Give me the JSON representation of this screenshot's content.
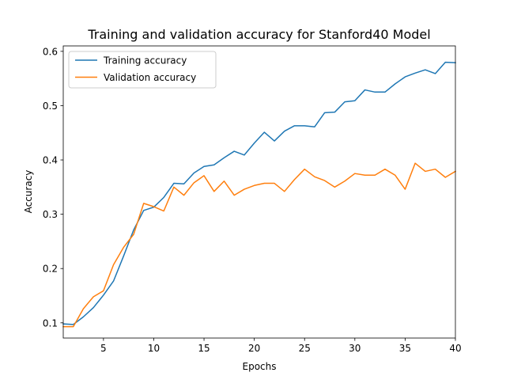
{
  "chart_data": {
    "type": "line",
    "title": "Training and validation accuracy for Stanford40 Model",
    "xlabel": "Epochs",
    "ylabel": "Accuracy",
    "xlim": [
      1,
      40
    ],
    "ylim": [
      0.072,
      0.61
    ],
    "xticks": [
      5,
      10,
      15,
      20,
      25,
      30,
      35,
      40
    ],
    "yticks": [
      0.1,
      0.2,
      0.3,
      0.4,
      0.5,
      0.6
    ],
    "xtick_labels": [
      "5",
      "10",
      "15",
      "20",
      "25",
      "30",
      "35",
      "40"
    ],
    "ytick_labels": [
      "0.1",
      "0.2",
      "0.3",
      "0.4",
      "0.5",
      "0.6"
    ],
    "grid": false,
    "legend_position": "top-left",
    "x": [
      1,
      2,
      3,
      4,
      5,
      6,
      7,
      8,
      9,
      10,
      11,
      12,
      13,
      14,
      15,
      16,
      17,
      18,
      19,
      20,
      21,
      22,
      23,
      24,
      25,
      26,
      27,
      28,
      29,
      30,
      31,
      32,
      33,
      34,
      35,
      36,
      37,
      38,
      39,
      40
    ],
    "series": [
      {
        "name": "Training accuracy",
        "color": "#1f77b4",
        "values": [
          0.098,
          0.097,
          0.111,
          0.128,
          0.151,
          0.177,
          0.223,
          0.271,
          0.307,
          0.313,
          0.331,
          0.357,
          0.356,
          0.376,
          0.388,
          0.391,
          0.404,
          0.416,
          0.409,
          0.431,
          0.451,
          0.435,
          0.453,
          0.463,
          0.463,
          0.461,
          0.487,
          0.488,
          0.507,
          0.509,
          0.529,
          0.525,
          0.525,
          0.54,
          0.553,
          0.56,
          0.566,
          0.559,
          0.58,
          0.579
        ]
      },
      {
        "name": "Validation accuracy",
        "color": "#ff7f0e",
        "values": [
          0.093,
          0.093,
          0.126,
          0.148,
          0.159,
          0.207,
          0.239,
          0.263,
          0.32,
          0.314,
          0.306,
          0.35,
          0.335,
          0.358,
          0.371,
          0.342,
          0.361,
          0.335,
          0.346,
          0.353,
          0.357,
          0.357,
          0.342,
          0.364,
          0.383,
          0.369,
          0.362,
          0.35,
          0.361,
          0.375,
          0.372,
          0.372,
          0.383,
          0.372,
          0.346,
          0.394,
          0.379,
          0.383,
          0.368,
          0.379
        ]
      }
    ]
  }
}
